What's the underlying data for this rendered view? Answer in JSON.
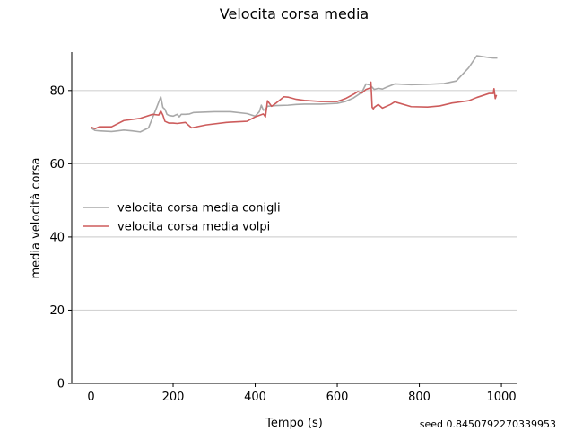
{
  "seed_text": "seed 0.8450792270339953",
  "chart_data": {
    "type": "line",
    "title": "Velocita corsa media",
    "xlabel": "Tempo (s)",
    "ylabel": "media velocità corsa",
    "xlim": [
      -47,
      1037
    ],
    "ylim": [
      0,
      90.5
    ],
    "xticks": [
      0,
      200,
      400,
      600,
      800,
      1000
    ],
    "yticks": [
      0,
      20,
      40,
      60,
      80
    ],
    "grid": "horizontal",
    "legend_position": "center-left",
    "series": [
      {
        "name": "velocita corsa media conigli",
        "color": "#a9a9a9",
        "x": [
          0,
          10,
          20,
          50,
          80,
          100,
          120,
          140,
          160,
          170,
          175,
          180,
          185,
          190,
          200,
          210,
          215,
          220,
          230,
          240,
          250,
          300,
          340,
          380,
          400,
          410,
          415,
          420,
          425,
          430,
          440,
          450,
          480,
          500,
          520,
          560,
          600,
          620,
          640,
          660,
          670,
          680,
          690,
          700,
          710,
          720,
          740,
          780,
          820,
          860,
          890,
          920,
          940,
          970,
          980,
          990
        ],
        "y": [
          69.8,
          69.1,
          69.0,
          68.8,
          69.2,
          69.0,
          68.7,
          69.8,
          75.4,
          78.3,
          75.4,
          74.9,
          73.5,
          73.2,
          73.0,
          73.5,
          72.8,
          73.5,
          73.5,
          73.6,
          74.0,
          74.2,
          74.2,
          73.7,
          73.0,
          74.2,
          76.0,
          74.6,
          74.9,
          75.7,
          75.8,
          75.9,
          76.0,
          76.2,
          76.3,
          76.3,
          76.5,
          77.0,
          78.0,
          79.5,
          81.8,
          81.5,
          80.3,
          80.6,
          80.4,
          80.9,
          81.8,
          81.6,
          81.7,
          81.9,
          82.6,
          86.2,
          89.5,
          89.0,
          88.9,
          88.9
        ]
      },
      {
        "name": "velocita corsa media volpi",
        "color": "#cd5c5c",
        "x": [
          0,
          10,
          20,
          50,
          80,
          120,
          150,
          165,
          170,
          175,
          180,
          190,
          200,
          210,
          230,
          245,
          280,
          330,
          380,
          400,
          420,
          425,
          430,
          440,
          450,
          470,
          480,
          500,
          520,
          560,
          600,
          620,
          640,
          650,
          660,
          670,
          680,
          682,
          685,
          688,
          690,
          700,
          710,
          730,
          740,
          780,
          820,
          850,
          880,
          920,
          940,
          970,
          980,
          982,
          985,
          988
        ],
        "y": [
          70.0,
          69.6,
          70.1,
          70.1,
          71.8,
          72.4,
          73.5,
          73.3,
          74.4,
          73.3,
          71.6,
          71.1,
          71.1,
          71.0,
          71.3,
          69.8,
          70.6,
          71.3,
          71.6,
          72.8,
          73.6,
          72.8,
          77.2,
          75.7,
          76.5,
          78.3,
          78.2,
          77.6,
          77.3,
          77.0,
          77.0,
          77.8,
          79.0,
          79.7,
          79.3,
          80.3,
          80.7,
          82.3,
          75.4,
          75.0,
          75.4,
          76.2,
          75.2,
          76.2,
          76.9,
          75.6,
          75.5,
          75.8,
          76.6,
          77.2,
          78.1,
          79.2,
          79.2,
          80.5,
          77.8,
          78.8
        ]
      }
    ]
  }
}
